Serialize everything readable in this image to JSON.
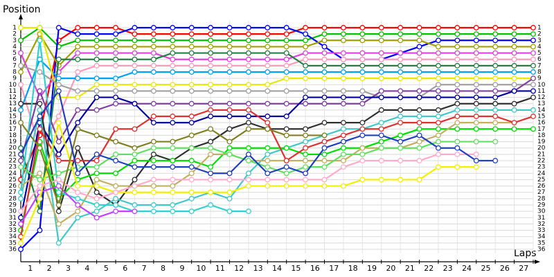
{
  "chart_data": {
    "type": "line",
    "y_label": "Position",
    "x_label": "Laps",
    "x": [
      0,
      1,
      2,
      3,
      4,
      5,
      6,
      7,
      8,
      9,
      10,
      11,
      12,
      13,
      14,
      15,
      16,
      17,
      18,
      19,
      20,
      21,
      22,
      23,
      24,
      25,
      26,
      27
    ],
    "xlim": [
      0,
      27
    ],
    "xticks": [
      1,
      2,
      3,
      4,
      5,
      6,
      7,
      8,
      9,
      10,
      11,
      12,
      13,
      14,
      15,
      16,
      17,
      18,
      19,
      20,
      21,
      22,
      23,
      24,
      25,
      26,
      27
    ],
    "ylim": [
      36,
      1
    ],
    "yticks": [
      1,
      2,
      3,
      4,
      5,
      6,
      7,
      8,
      9,
      10,
      11,
      12,
      13,
      14,
      15,
      16,
      17,
      18,
      19,
      20,
      21,
      22,
      23,
      24,
      25,
      26,
      27,
      28,
      29,
      30,
      31,
      32,
      33,
      34,
      35,
      36
    ],
    "grid": true,
    "marker_fill": "#ffffff",
    "series": [
      {
        "color": "#ff0000",
        "values": [
          25,
          18,
          3,
          1,
          1,
          1,
          2,
          2,
          2,
          2,
          2,
          2,
          2,
          2,
          2,
          1,
          1,
          1,
          1,
          1,
          1,
          1,
          1,
          1,
          1,
          1,
          1,
          1
        ]
      },
      {
        "color": "#00c000",
        "values": [
          3,
          1,
          4,
          3,
          3,
          3,
          3,
          3,
          3,
          3,
          3,
          3,
          3,
          3,
          3,
          3,
          2,
          2,
          2,
          2,
          2,
          2,
          2,
          2,
          2,
          2,
          2,
          2
        ]
      },
      {
        "color": "#0000ff",
        "values": [
          36,
          33,
          1,
          2,
          2,
          2,
          1,
          1,
          1,
          1,
          1,
          1,
          1,
          1,
          1,
          2,
          4,
          6,
          6,
          6,
          5,
          4,
          3,
          3,
          3,
          3,
          3,
          3
        ]
      },
      {
        "color": "#a0a000",
        "values": [
          8,
          2,
          7,
          4,
          4,
          4,
          4,
          4,
          4,
          4,
          4,
          4,
          4,
          4,
          4,
          4,
          3,
          3,
          3,
          3,
          3,
          3,
          4,
          4,
          4,
          4,
          4,
          4
        ]
      },
      {
        "color": "#e040e0",
        "values": [
          5,
          12,
          8,
          5,
          5,
          5,
          5,
          5,
          6,
          6,
          6,
          6,
          6,
          6,
          6,
          5,
          5,
          5,
          5,
          5,
          5,
          5,
          5,
          5,
          5,
          5,
          5,
          5
        ]
      },
      {
        "color": "#ff99bb",
        "values": [
          10,
          20,
          15,
          8,
          7,
          7,
          7,
          7,
          7,
          7,
          7,
          7,
          7,
          7,
          7,
          6,
          6,
          6,
          6,
          6,
          6,
          6,
          6,
          6,
          6,
          6,
          6,
          6
        ]
      },
      {
        "color": "#208040",
        "values": [
          20,
          30,
          6,
          6,
          6,
          6,
          6,
          6,
          5,
          5,
          5,
          5,
          5,
          5,
          5,
          7,
          7,
          7,
          7,
          7,
          7,
          7,
          7,
          7,
          7,
          7,
          7,
          7
        ]
      },
      {
        "color": "#00a0f0",
        "values": [
          14,
          6,
          9,
          9,
          9,
          9,
          8,
          8,
          8,
          8,
          8,
          8,
          8,
          8,
          8,
          8,
          8,
          8,
          8,
          8,
          8,
          8,
          8,
          8,
          8,
          8,
          8,
          8
        ]
      },
      {
        "color": "#e8e800",
        "values": [
          1,
          1,
          12,
          12,
          10,
          10,
          10,
          10,
          10,
          10,
          10,
          10,
          10,
          10,
          9,
          9,
          9,
          9,
          9,
          9,
          9,
          9,
          9,
          9,
          9,
          9,
          9,
          9
        ]
      },
      {
        "color": "#a0a0a0",
        "values": [
          7,
          8,
          10,
          11,
          11,
          11,
          11,
          11,
          11,
          11,
          11,
          11,
          11,
          11,
          11,
          11,
          11,
          11,
          11,
          12,
          12,
          12,
          10,
          10,
          10,
          10,
          10,
          10
        ]
      },
      {
        "color": "#8040a0",
        "values": [
          22,
          11,
          19,
          14,
          14,
          13,
          13,
          13,
          13,
          13,
          13,
          13,
          13,
          13,
          13,
          13,
          13,
          13,
          13,
          11,
          11,
          11,
          11,
          11,
          11,
          11,
          11,
          9
        ]
      },
      {
        "color": "#0000a0",
        "values": [
          31,
          16,
          21,
          16,
          12,
          12,
          13,
          16,
          16,
          16,
          15,
          15,
          15,
          15,
          15,
          12,
          12,
          12,
          12,
          12,
          12,
          12,
          12,
          12,
          12,
          12,
          11,
          11
        ]
      },
      {
        "color": "#303030",
        "values": [
          13,
          13,
          30,
          20,
          27,
          29,
          25,
          21,
          22,
          20,
          19,
          17,
          16,
          17,
          17,
          17,
          16,
          16,
          16,
          14,
          14,
          14,
          14,
          13,
          13,
          13,
          13,
          12
        ]
      },
      {
        "color": "#40c8c8",
        "values": [
          28,
          14,
          35,
          31,
          30,
          28,
          29,
          29,
          29,
          28,
          27,
          28,
          24,
          21,
          20,
          19,
          18,
          17,
          17,
          16,
          15,
          15,
          15,
          14,
          14,
          14,
          14,
          14
        ]
      },
      {
        "color": "#00e000",
        "values": [
          33,
          19,
          28,
          25,
          24,
          24,
          22,
          22,
          22,
          22,
          23,
          20,
          20,
          20,
          20,
          21,
          21,
          20,
          20,
          19,
          18,
          17,
          17,
          17,
          17,
          17,
          17,
          17
        ]
      },
      {
        "color": "#c0b060",
        "values": [
          26,
          24,
          32,
          30,
          25,
          26,
          26,
          26,
          26,
          24,
          21,
          21,
          22,
          22,
          22,
          22,
          22,
          22,
          20,
          20,
          20,
          19,
          18,
          16,
          16,
          16,
          16,
          null
        ]
      },
      {
        "color": "#e03030",
        "values": [
          34,
          17,
          22,
          22,
          22,
          17,
          17,
          15,
          15,
          15,
          14,
          14,
          14,
          16,
          22,
          20,
          19,
          18,
          17,
          17,
          16,
          16,
          16,
          15,
          15,
          15,
          16,
          15
        ]
      },
      {
        "color": "#30d0d0",
        "values": [
          27,
          3,
          27,
          28,
          29,
          29,
          30,
          30,
          30,
          30,
          29,
          30,
          30,
          null,
          null,
          null,
          null,
          null,
          null,
          null,
          null,
          null,
          null,
          null,
          null,
          null,
          null,
          null
        ]
      },
      {
        "color": "#c040ff",
        "values": [
          32,
          27,
          26,
          29,
          31,
          30,
          30,
          null,
          null,
          null,
          null,
          null,
          null,
          null,
          null,
          null,
          null,
          null,
          null,
          null,
          null,
          null,
          null,
          null,
          null,
          null,
          null,
          null
        ]
      },
      {
        "color": "#60e060",
        "values": [
          23,
          25,
          24,
          23,
          23,
          21,
          21,
          20,
          20,
          20,
          20,
          21,
          22,
          23,
          24,
          23,
          23,
          21,
          21,
          20,
          20,
          20,
          19,
          19,
          19,
          19,
          null,
          null
        ]
      },
      {
        "color": "#f0f000",
        "values": [
          35,
          28,
          16,
          26,
          26,
          27,
          27,
          27,
          27,
          27,
          27,
          27,
          26,
          26,
          26,
          26,
          26,
          26,
          25,
          25,
          25,
          25,
          23,
          23,
          23,
          null,
          null,
          null
        ]
      },
      {
        "color": "#ffaacc",
        "values": [
          30,
          26,
          25,
          27,
          28,
          27,
          26,
          25,
          25,
          25,
          25,
          25,
          25,
          25,
          25,
          25,
          25,
          23,
          22,
          22,
          22,
          22,
          21,
          21,
          21,
          null,
          null,
          null
        ]
      },
      {
        "color": "#808020",
        "values": [
          16,
          20,
          29,
          17,
          18,
          19,
          20,
          19,
          19,
          18,
          17,
          19,
          17,
          17,
          18,
          18,
          18,
          null,
          null,
          null,
          null,
          null,
          null,
          null,
          null,
          null,
          null,
          null
        ]
      },
      {
        "color": "#2040c0",
        "values": [
          21,
          15,
          11,
          24,
          21,
          22,
          23,
          23,
          23,
          23,
          24,
          24,
          21,
          24,
          23,
          24,
          20,
          19,
          18,
          18,
          19,
          18,
          20,
          20,
          22,
          22,
          null,
          null
        ]
      }
    ]
  }
}
